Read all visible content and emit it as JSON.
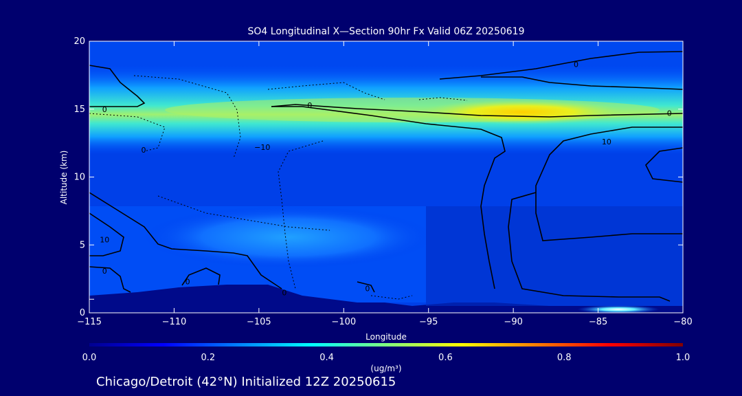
{
  "chart_data": {
    "type": "heatmap",
    "title": "SO4 Longitudinal X—Section 90hr  Fx Valid 06Z 20250619",
    "xlabel": "Longitude",
    "ylabel": "Altitude (km)",
    "xlim": [
      -115,
      -80
    ],
    "ylim": [
      0,
      20
    ],
    "x_ticks": [
      -115,
      -110,
      -105,
      -100,
      -95,
      -90,
      -85,
      -80
    ],
    "x_tick_labels": [
      "−115",
      "−110",
      "−105",
      "−100",
      "−95",
      "−90",
      "−85",
      "−80"
    ],
    "y_ticks": [
      0,
      5,
      10,
      15,
      20
    ],
    "y_tick_labels": [
      "0",
      "5",
      "10",
      "15",
      "20"
    ],
    "colorbar": {
      "label": "(ug/m³)",
      "range": [
        0.0,
        1.0
      ],
      "ticks": [
        0.0,
        0.2,
        0.4,
        0.6,
        0.8,
        1.0
      ],
      "tick_labels": [
        "0.0",
        "0.2",
        "0.4",
        "0.6",
        "0.8",
        "1.0"
      ],
      "colormap": [
        "#00008f",
        "#0000ff",
        "#0080ff",
        "#00ffff",
        "#80ff80",
        "#ffff00",
        "#ff8000",
        "#ff0000",
        "#800000"
      ]
    },
    "contour_labels": [
      {
        "text": "0",
        "lon": -114.1,
        "alt": 15.0
      },
      {
        "text": "0",
        "lon": -102.0,
        "alt": 15.3
      },
      {
        "text": "−10",
        "lon": -104.8,
        "alt": 12.2
      },
      {
        "text": "0",
        "lon": -86.3,
        "alt": 18.3
      },
      {
        "text": "10",
        "lon": -84.5,
        "alt": 12.6
      },
      {
        "text": "0",
        "lon": -80.8,
        "alt": 14.7
      },
      {
        "text": "0",
        "lon": -111.8,
        "alt": 12.0
      },
      {
        "text": "10",
        "lon": -114.1,
        "alt": 5.4
      },
      {
        "text": "0",
        "lon": -114.1,
        "alt": 3.1
      },
      {
        "text": "0",
        "lon": -109.2,
        "alt": 2.3
      },
      {
        "text": "0",
        "lon": -103.5,
        "alt": 1.5
      },
      {
        "text": "0",
        "lon": -98.6,
        "alt": 1.8
      }
    ],
    "fields": [
      {
        "lon": -97.5,
        "alt": 14.6,
        "rx": 24,
        "ry": 0.9,
        "value": 0.55
      },
      {
        "lon": -86.5,
        "alt": 14.7,
        "rx": 7,
        "ry": 0.7,
        "value": 0.68
      },
      {
        "lon": -103,
        "alt": 5.8,
        "rx": 7.5,
        "ry": 1.6,
        "value": 0.35
      },
      {
        "lon": -84,
        "alt": 0.2,
        "rx": 4,
        "ry": 0.3,
        "value": 0.55
      }
    ]
  },
  "footer": "Chicago/Detroit (42°N) Initialized 12Z 20250615"
}
